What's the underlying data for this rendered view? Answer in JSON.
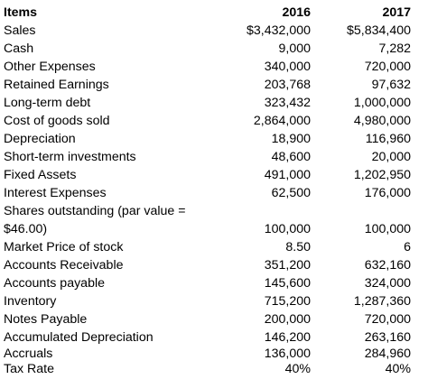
{
  "table": {
    "header": {
      "items": "Items",
      "col_2016": "2016",
      "col_2017": "2017"
    },
    "rows": [
      {
        "label": "Sales",
        "v2016": "$3,432,000",
        "v2017": "$5,834,400"
      },
      {
        "label": "Cash",
        "v2016": "9,000",
        "v2017": "7,282"
      },
      {
        "label": "Other Expenses",
        "v2016": "340,000",
        "v2017": "720,000"
      },
      {
        "label": "Retained Earnings",
        "v2016": "203,768",
        "v2017": "97,632"
      },
      {
        "label": "Long-term debt",
        "v2016": "323,432",
        "v2017": "1,000,000"
      },
      {
        "label": "Cost of goods sold",
        "v2016": "2,864,000",
        "v2017": "4,980,000"
      },
      {
        "label": "Depreciation",
        "v2016": "18,900",
        "v2017": "116,960"
      },
      {
        "label": "Short-term investments",
        "v2016": "48,600",
        "v2017": "20,000"
      },
      {
        "label": "Fixed Assets",
        "v2016": "491,000",
        "v2017": "1,202,950"
      },
      {
        "label": "Interest Expenses",
        "v2016": "62,500",
        "v2017": "176,000"
      },
      {
        "label": "Shares outstanding (par value = $46.00)",
        "v2016": "100,000",
        "v2017": "100,000"
      },
      {
        "label": "Market Price of stock",
        "v2016": "8.50",
        "v2017": "6"
      },
      {
        "label": "Accounts Receivable",
        "v2016": "351,200",
        "v2017": "632,160"
      },
      {
        "label": "Accounts payable",
        "v2016": "145,600",
        "v2017": "324,000"
      },
      {
        "label": "Inventory",
        "v2016": "715,200",
        "v2017": "1,287,360"
      },
      {
        "label": "Notes Payable",
        "v2016": "200,000",
        "v2017": "720,000"
      },
      {
        "label": "Accumulated Depreciation",
        "v2016": "146,200",
        "v2017": "263,160"
      },
      {
        "label": "Accruals",
        "v2016": "136,000",
        "v2017": "284,960"
      },
      {
        "label": "Tax Rate",
        "v2016": "40%",
        "v2017": "40%"
      }
    ]
  }
}
